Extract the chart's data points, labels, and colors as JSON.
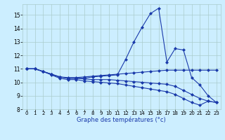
{
  "title": "Graphe des températures (°c)",
  "bg_color": "#cceeff",
  "grid_color": "#aacccc",
  "line_color": "#1a3aaa",
  "xlim": [
    -0.5,
    23.5
  ],
  "ylim": [
    8.0,
    15.8
  ],
  "xticks": [
    0,
    1,
    2,
    3,
    4,
    5,
    6,
    7,
    8,
    9,
    10,
    11,
    12,
    13,
    14,
    15,
    16,
    17,
    18,
    19,
    20,
    21,
    22,
    23
  ],
  "yticks": [
    8,
    9,
    10,
    11,
    12,
    13,
    14,
    15
  ],
  "series": [
    {
      "x": [
        0,
        1,
        2,
        3,
        4,
        5,
        6,
        7,
        8,
        9,
        10,
        11,
        12,
        13,
        14,
        15,
        16,
        17,
        18,
        19,
        20,
        21,
        22,
        23
      ],
      "y": [
        11.0,
        11.0,
        10.8,
        10.6,
        10.4,
        10.3,
        10.3,
        10.3,
        10.4,
        10.45,
        10.5,
        10.55,
        11.7,
        13.0,
        14.1,
        15.1,
        15.5,
        11.5,
        12.5,
        12.4,
        10.35,
        9.8,
        9.0,
        8.5
      ]
    },
    {
      "x": [
        0,
        1,
        2,
        3,
        4,
        5,
        6,
        7,
        8,
        9,
        10,
        11,
        12,
        13,
        14,
        15,
        16,
        17,
        18,
        19,
        20,
        21,
        22,
        23
      ],
      "y": [
        11.0,
        11.0,
        10.8,
        10.6,
        10.4,
        10.35,
        10.35,
        10.4,
        10.45,
        10.5,
        10.55,
        10.6,
        10.65,
        10.7,
        10.75,
        10.8,
        10.85,
        10.9,
        10.9,
        10.9,
        10.9,
        10.9,
        10.9,
        10.9
      ]
    },
    {
      "x": [
        0,
        1,
        2,
        3,
        4,
        5,
        6,
        7,
        8,
        9,
        10,
        11,
        12,
        13,
        14,
        15,
        16,
        17,
        18,
        19,
        20,
        21,
        22,
        23
      ],
      "y": [
        11.0,
        11.0,
        10.8,
        10.6,
        10.4,
        10.3,
        10.3,
        10.25,
        10.2,
        10.2,
        10.2,
        10.15,
        10.1,
        10.05,
        10.0,
        9.95,
        9.9,
        9.85,
        9.7,
        9.4,
        9.1,
        8.8,
        8.6,
        8.5
      ]
    },
    {
      "x": [
        0,
        1,
        2,
        3,
        4,
        5,
        6,
        7,
        8,
        9,
        10,
        11,
        12,
        13,
        14,
        15,
        16,
        17,
        18,
        19,
        20,
        21,
        22,
        23
      ],
      "y": [
        11.0,
        11.0,
        10.8,
        10.55,
        10.3,
        10.2,
        10.2,
        10.1,
        10.05,
        10.0,
        9.95,
        9.9,
        9.8,
        9.7,
        9.6,
        9.5,
        9.4,
        9.3,
        9.1,
        8.8,
        8.5,
        8.3,
        8.6,
        8.5
      ]
    }
  ]
}
